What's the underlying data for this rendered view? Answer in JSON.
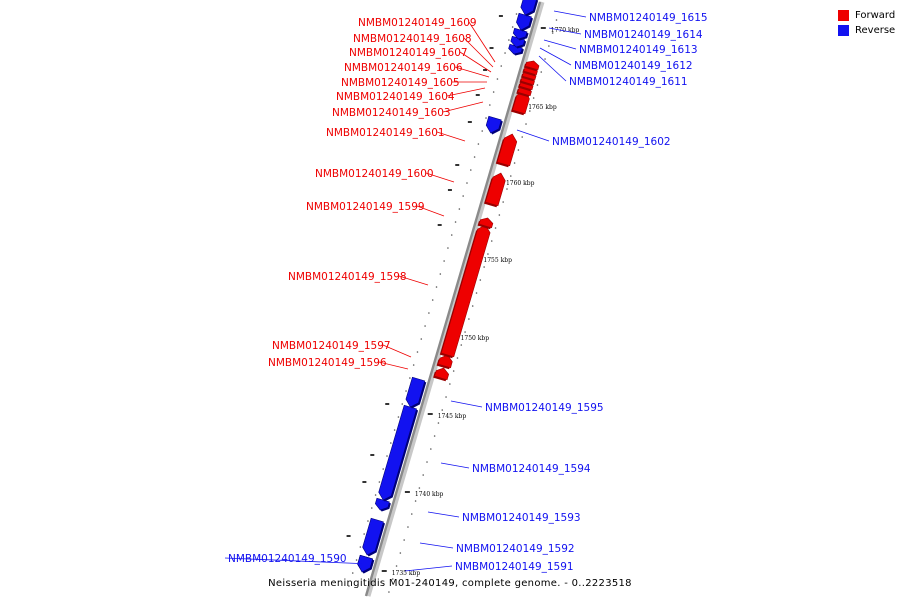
{
  "legend": {
    "forward": {
      "label": "Forward",
      "color": "#ee0000"
    },
    "reverse": {
      "label": "Reverse",
      "color": "#1212f0"
    }
  },
  "caption": "Neisseria meningitidis M01-240149, complete genome. - 0..2223518",
  "ticks": [
    {
      "label": "1735 kbp",
      "kbp": 1735
    },
    {
      "label": "1740 kbp",
      "kbp": 1740
    },
    {
      "label": "1745 kbp",
      "kbp": 1745
    },
    {
      "label": "1750 kbp",
      "kbp": 1750
    },
    {
      "label": "1755 kbp",
      "kbp": 1755
    },
    {
      "label": "1760 kbp",
      "kbp": 1760
    },
    {
      "label": "1765 kbp",
      "kbp": 1765
    },
    {
      "label": "1770 kbp",
      "kbp": 1770
    }
  ],
  "genes": [
    {
      "name": "NMBM01240149_1590",
      "strand": "reverse"
    },
    {
      "name": "NMBM01240149_1591",
      "strand": "reverse"
    },
    {
      "name": "NMBM01240149_1592",
      "strand": "reverse"
    },
    {
      "name": "NMBM01240149_1593",
      "strand": "reverse"
    },
    {
      "name": "NMBM01240149_1594",
      "strand": "reverse"
    },
    {
      "name": "NMBM01240149_1595",
      "strand": "reverse"
    },
    {
      "name": "NMBM01240149_1596",
      "strand": "forward"
    },
    {
      "name": "NMBM01240149_1597",
      "strand": "forward"
    },
    {
      "name": "NMBM01240149_1598",
      "strand": "forward"
    },
    {
      "name": "NMBM01240149_1599",
      "strand": "forward"
    },
    {
      "name": "NMBM01240149_1600",
      "strand": "forward"
    },
    {
      "name": "NMBM01240149_1601",
      "strand": "forward"
    },
    {
      "name": "NMBM01240149_1602",
      "strand": "reverse"
    },
    {
      "name": "NMBM01240149_1603",
      "strand": "forward"
    },
    {
      "name": "NMBM01240149_1604",
      "strand": "forward"
    },
    {
      "name": "NMBM01240149_1605",
      "strand": "forward"
    },
    {
      "name": "NMBM01240149_1606",
      "strand": "forward"
    },
    {
      "name": "NMBM01240149_1607",
      "strand": "forward"
    },
    {
      "name": "NMBM01240149_1608",
      "strand": "forward"
    },
    {
      "name": "NMBM01240149_1609",
      "strand": "forward"
    },
    {
      "name": "NMBM01240149_1611",
      "strand": "reverse"
    },
    {
      "name": "NMBM01240149_1612",
      "strand": "reverse"
    },
    {
      "name": "NMBM01240149_1613",
      "strand": "reverse"
    },
    {
      "name": "NMBM01240149_1614",
      "strand": "reverse"
    },
    {
      "name": "NMBM01240149_1615",
      "strand": "reverse"
    }
  ]
}
